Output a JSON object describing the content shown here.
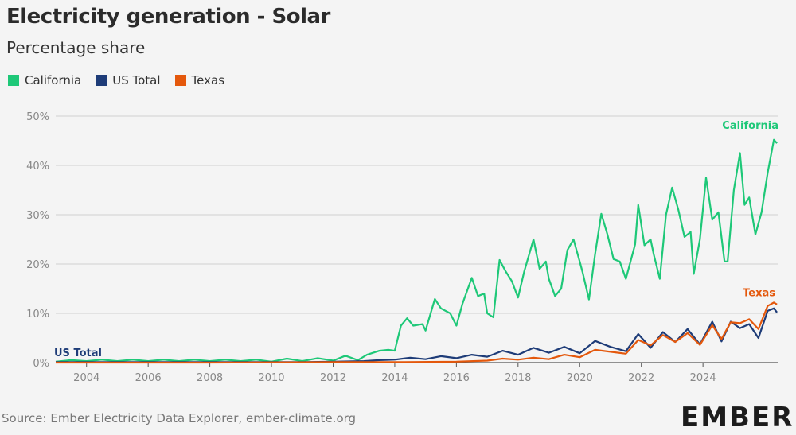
{
  "header": {
    "title": "Electricity generation - Solar",
    "subtitle": "Percentage share"
  },
  "legend": [
    {
      "label": "California",
      "color": "#1ec878"
    },
    {
      "label": "US Total",
      "color": "#1e3c78"
    },
    {
      "label": "Texas",
      "color": "#e4580c"
    }
  ],
  "footer": {
    "source": "Source: Ember Electricity Data Explorer, ember-climate.org",
    "logo_text": "EMBER"
  },
  "chart_data": {
    "type": "line",
    "title": "Electricity generation - Solar",
    "subtitle": "Percentage share",
    "xlabel": "",
    "ylabel": "",
    "xlim": [
      2003.0,
      2025.5
    ],
    "ylim": [
      0,
      50
    ],
    "y_ticks": [
      "0%",
      "10%",
      "20%",
      "30%",
      "40%",
      "50%"
    ],
    "x_ticks": [
      "2004",
      "2006",
      "2008",
      "2010",
      "2012",
      "2014",
      "2016",
      "2018",
      "2020",
      "2022",
      "2024"
    ],
    "grid": true,
    "legend_position": "top-left",
    "end_labels": {
      "California": "California",
      "Texas": "Texas",
      "US Total": "US Total"
    },
    "series": [
      {
        "name": "California",
        "color": "#1ec878",
        "points": [
          [
            2003.0,
            0.2
          ],
          [
            2003.5,
            0.5
          ],
          [
            2004.0,
            0.3
          ],
          [
            2004.5,
            0.6
          ],
          [
            2005.0,
            0.3
          ],
          [
            2005.5,
            0.6
          ],
          [
            2006.0,
            0.3
          ],
          [
            2006.5,
            0.6
          ],
          [
            2007.0,
            0.3
          ],
          [
            2007.5,
            0.6
          ],
          [
            2008.0,
            0.3
          ],
          [
            2008.5,
            0.6
          ],
          [
            2009.0,
            0.3
          ],
          [
            2009.5,
            0.6
          ],
          [
            2010.0,
            0.2
          ],
          [
            2010.5,
            0.8
          ],
          [
            2011.0,
            0.3
          ],
          [
            2011.5,
            0.9
          ],
          [
            2012.0,
            0.4
          ],
          [
            2012.4,
            1.4
          ],
          [
            2012.8,
            0.5
          ],
          [
            2013.1,
            1.6
          ],
          [
            2013.5,
            2.4
          ],
          [
            2013.8,
            2.6
          ],
          [
            2014.0,
            2.4
          ],
          [
            2014.2,
            7.5
          ],
          [
            2014.4,
            9.0
          ],
          [
            2014.6,
            7.5
          ],
          [
            2014.9,
            7.8
          ],
          [
            2015.0,
            6.5
          ],
          [
            2015.3,
            12.9
          ],
          [
            2015.5,
            11.0
          ],
          [
            2015.8,
            10.0
          ],
          [
            2016.0,
            7.5
          ],
          [
            2016.2,
            12.0
          ],
          [
            2016.5,
            17.2
          ],
          [
            2016.7,
            13.5
          ],
          [
            2016.9,
            14.0
          ],
          [
            2017.0,
            10.0
          ],
          [
            2017.2,
            9.2
          ],
          [
            2017.4,
            20.8
          ],
          [
            2017.6,
            18.5
          ],
          [
            2017.8,
            16.5
          ],
          [
            2018.0,
            13.2
          ],
          [
            2018.2,
            18.5
          ],
          [
            2018.5,
            25.0
          ],
          [
            2018.7,
            19.0
          ],
          [
            2018.9,
            20.5
          ],
          [
            2019.0,
            17.0
          ],
          [
            2019.2,
            13.5
          ],
          [
            2019.4,
            15.0
          ],
          [
            2019.6,
            22.8
          ],
          [
            2019.8,
            25.0
          ],
          [
            2020.0,
            20.5
          ],
          [
            2020.1,
            18.2
          ],
          [
            2020.3,
            12.8
          ],
          [
            2020.5,
            22.0
          ],
          [
            2020.7,
            30.2
          ],
          [
            2020.9,
            26.0
          ],
          [
            2021.1,
            21.0
          ],
          [
            2021.3,
            20.5
          ],
          [
            2021.5,
            17.0
          ],
          [
            2021.8,
            24.0
          ],
          [
            2021.9,
            32.0
          ],
          [
            2022.1,
            23.8
          ],
          [
            2022.3,
            25.0
          ],
          [
            2022.4,
            22.0
          ],
          [
            2022.6,
            17.0
          ],
          [
            2022.8,
            30.0
          ],
          [
            2023.0,
            35.5
          ],
          [
            2023.2,
            31.0
          ],
          [
            2023.4,
            25.5
          ],
          [
            2023.6,
            26.5
          ],
          [
            2023.7,
            18.0
          ],
          [
            2023.9,
            25.0
          ],
          [
            2024.1,
            37.5
          ],
          [
            2024.3,
            29.0
          ],
          [
            2024.5,
            30.5
          ],
          [
            2024.7,
            20.5
          ],
          [
            2024.8,
            20.5
          ],
          [
            2025.0,
            35.0
          ],
          [
            2025.2,
            42.5
          ],
          [
            2025.35,
            32.0
          ],
          [
            2025.5,
            33.5
          ],
          [
            2025.7,
            26.0
          ],
          [
            2025.9,
            30.5
          ],
          [
            2026.1,
            38.5
          ],
          [
            2026.3,
            45.2
          ],
          [
            2026.4,
            44.5
          ]
        ]
      },
      {
        "name": "US Total",
        "color": "#1e3c78",
        "points": [
          [
            2003.0,
            0.1
          ],
          [
            2006.0,
            0.1
          ],
          [
            2009.0,
            0.1
          ],
          [
            2011.0,
            0.1
          ],
          [
            2012.0,
            0.2
          ],
          [
            2013.0,
            0.3
          ],
          [
            2013.5,
            0.5
          ],
          [
            2014.0,
            0.6
          ],
          [
            2014.5,
            1.0
          ],
          [
            2015.0,
            0.7
          ],
          [
            2015.5,
            1.3
          ],
          [
            2016.0,
            0.9
          ],
          [
            2016.5,
            1.6
          ],
          [
            2017.0,
            1.2
          ],
          [
            2017.5,
            2.4
          ],
          [
            2018.0,
            1.6
          ],
          [
            2018.5,
            3.0
          ],
          [
            2019.0,
            2.0
          ],
          [
            2019.5,
            3.2
          ],
          [
            2020.0,
            1.9
          ],
          [
            2020.5,
            4.4
          ],
          [
            2021.0,
            3.2
          ],
          [
            2021.5,
            2.3
          ],
          [
            2021.9,
            5.8
          ],
          [
            2022.3,
            3.0
          ],
          [
            2022.7,
            6.2
          ],
          [
            2023.1,
            4.2
          ],
          [
            2023.5,
            6.8
          ],
          [
            2023.9,
            3.7
          ],
          [
            2024.3,
            8.3
          ],
          [
            2024.6,
            4.3
          ],
          [
            2024.9,
            8.3
          ],
          [
            2025.2,
            7.0
          ],
          [
            2025.5,
            7.8
          ],
          [
            2025.8,
            5.0
          ],
          [
            2026.1,
            10.5
          ],
          [
            2026.3,
            11.0
          ],
          [
            2026.4,
            10.2
          ]
        ]
      },
      {
        "name": "Texas",
        "color": "#e4580c",
        "points": [
          [
            2003.0,
            0.0
          ],
          [
            2008.0,
            0.0
          ],
          [
            2012.0,
            0.1
          ],
          [
            2014.0,
            0.1
          ],
          [
            2016.0,
            0.2
          ],
          [
            2017.0,
            0.4
          ],
          [
            2017.5,
            0.8
          ],
          [
            2018.0,
            0.6
          ],
          [
            2018.5,
            1.0
          ],
          [
            2019.0,
            0.7
          ],
          [
            2019.5,
            1.6
          ],
          [
            2020.0,
            1.1
          ],
          [
            2020.5,
            2.6
          ],
          [
            2021.0,
            2.2
          ],
          [
            2021.5,
            1.8
          ],
          [
            2021.9,
            4.6
          ],
          [
            2022.3,
            3.5
          ],
          [
            2022.7,
            5.6
          ],
          [
            2023.1,
            4.2
          ],
          [
            2023.5,
            6.0
          ],
          [
            2023.9,
            3.6
          ],
          [
            2024.3,
            7.6
          ],
          [
            2024.6,
            4.8
          ],
          [
            2024.9,
            8.2
          ],
          [
            2025.2,
            8.0
          ],
          [
            2025.5,
            8.8
          ],
          [
            2025.8,
            6.8
          ],
          [
            2026.1,
            11.5
          ],
          [
            2026.3,
            12.2
          ],
          [
            2026.4,
            11.8
          ]
        ]
      }
    ]
  }
}
